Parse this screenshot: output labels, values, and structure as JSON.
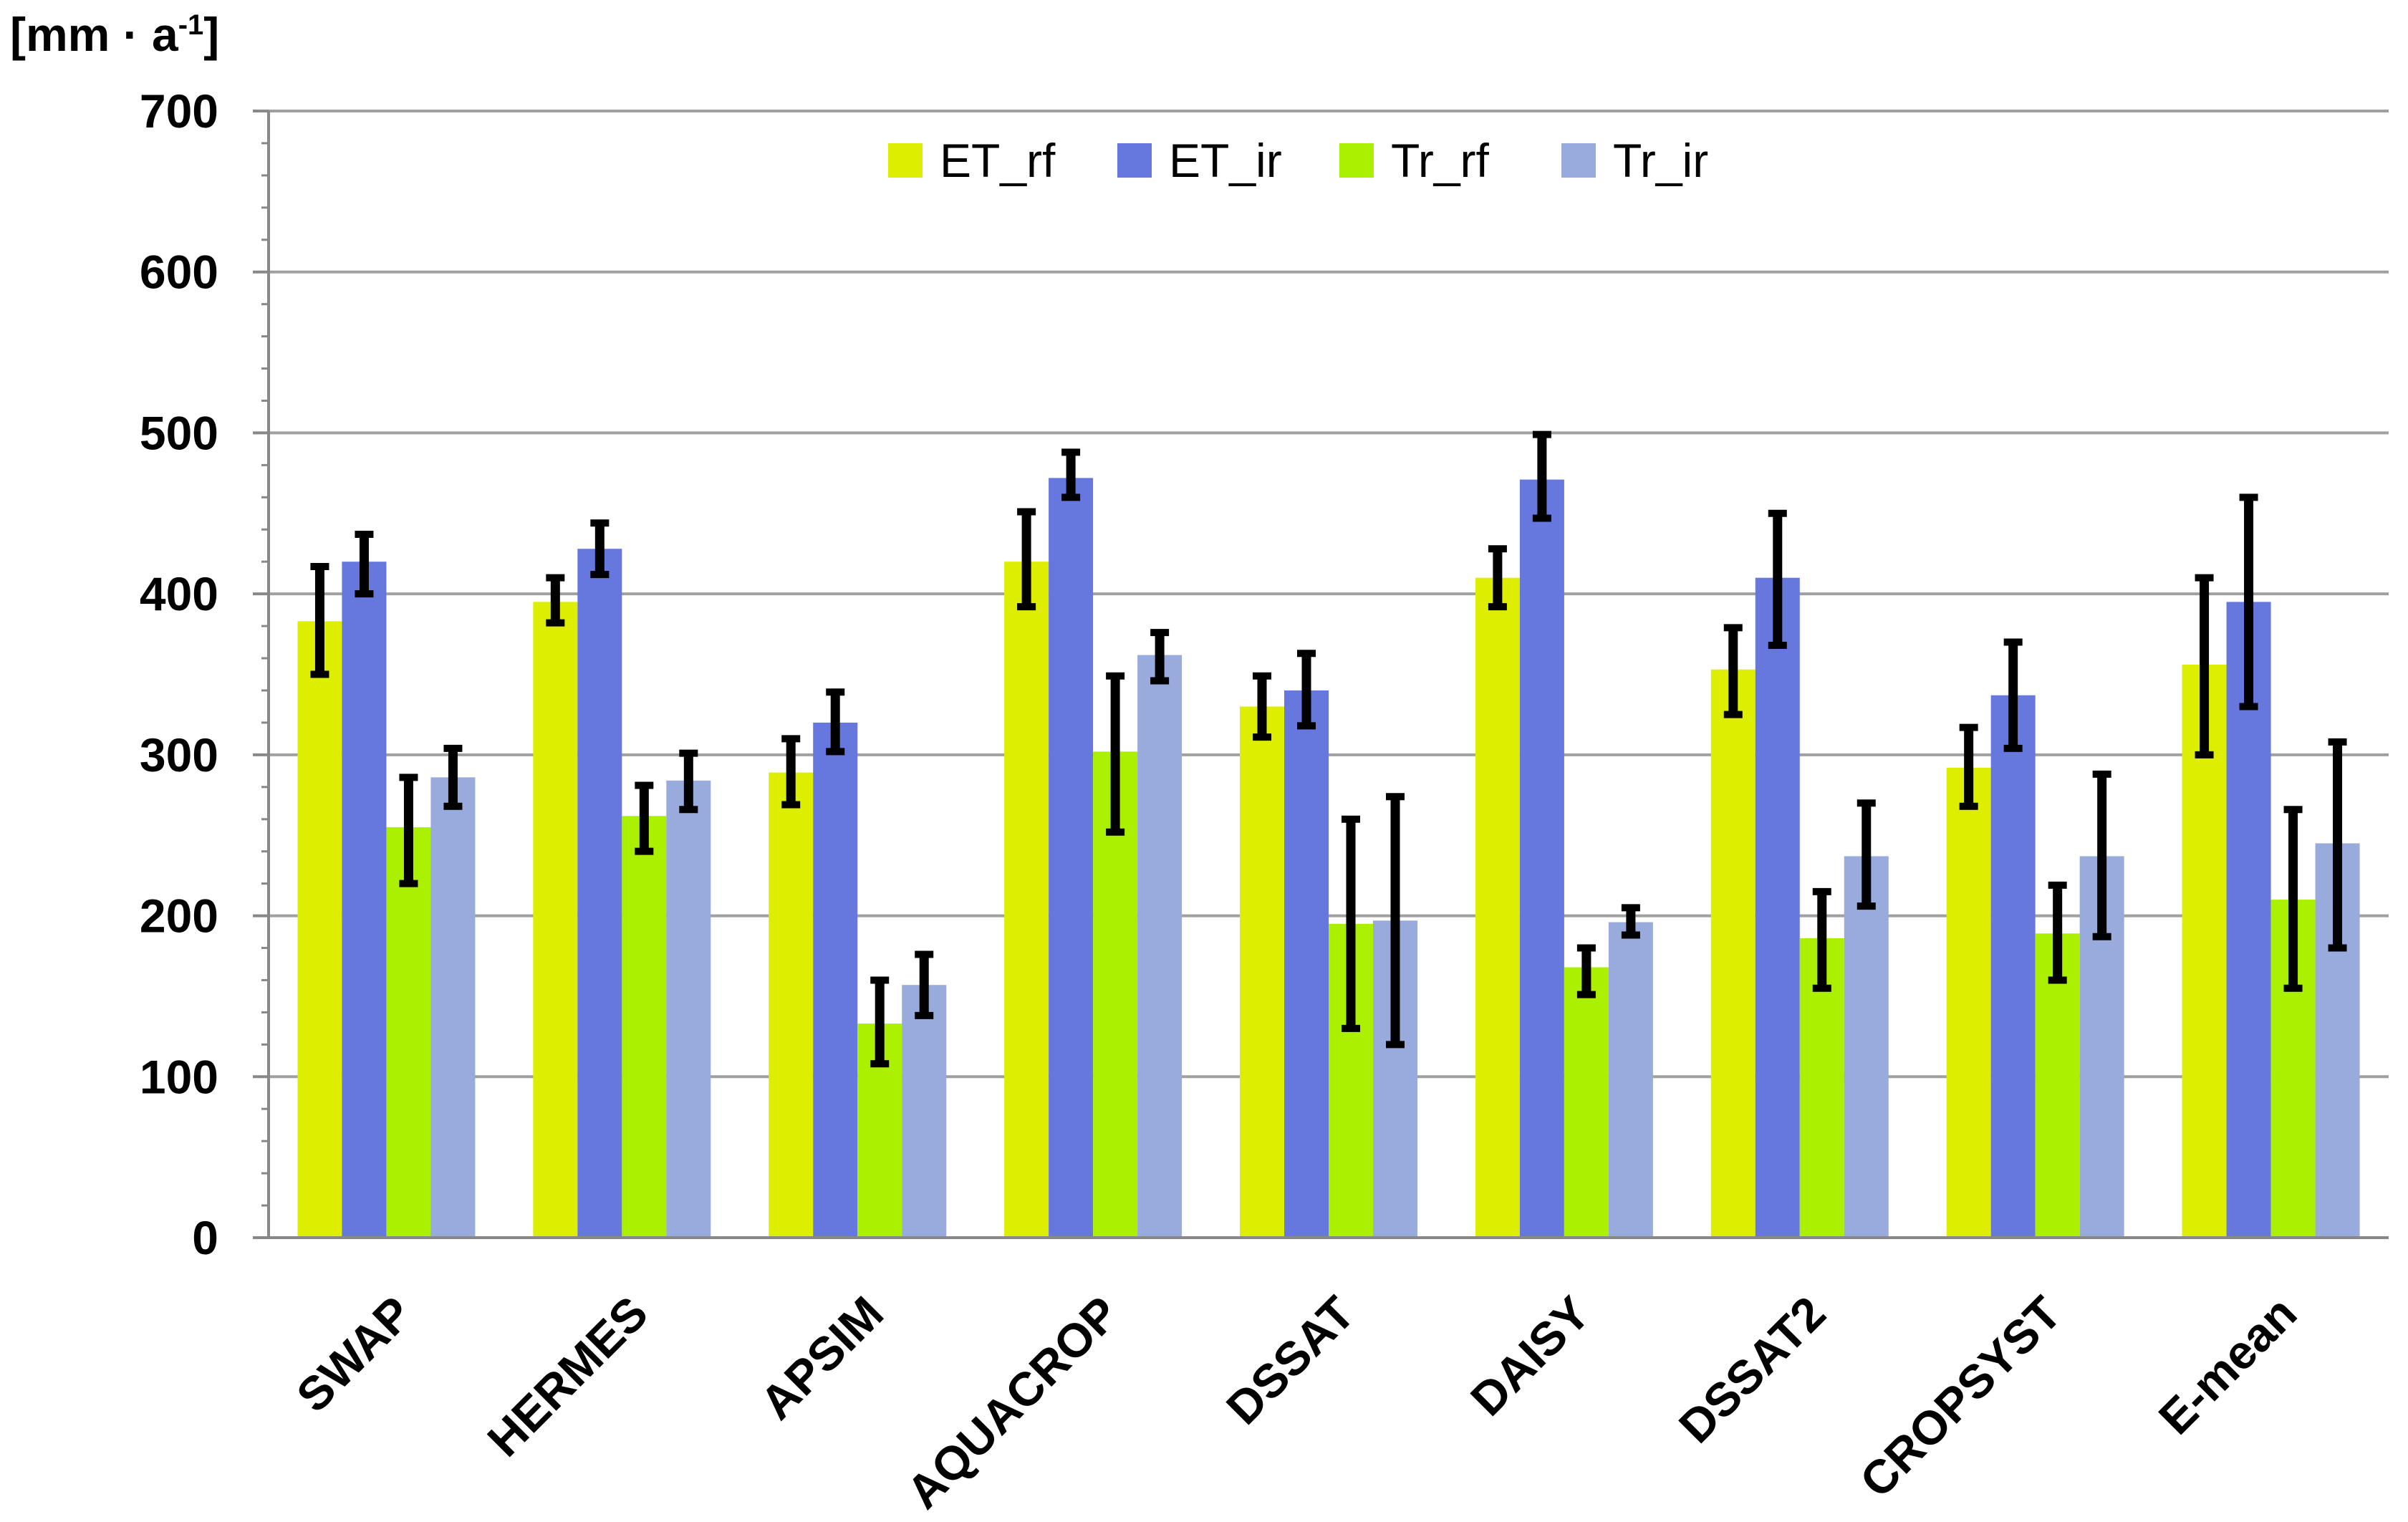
{
  "chart_data": {
    "type": "bar",
    "ylabel_prefix": "[mm · a",
    "ylabel_sup": "-1",
    "ylabel_suffix": "]",
    "ylim": [
      0,
      700
    ],
    "yticks": [
      0,
      100,
      200,
      300,
      400,
      500,
      600,
      700
    ],
    "grid": true,
    "legend_position": "top-center",
    "categories": [
      "SWAP",
      "HERMES",
      "APSIM",
      "AQUACROP",
      "DSSAT",
      "DAISY",
      "DSSAT2",
      "CROPSYST",
      "E-mean"
    ],
    "series": [
      {
        "name": "ET_rf",
        "color": "#ddee00",
        "values": [
          383,
          395,
          289,
          420,
          330,
          410,
          353,
          292,
          356
        ],
        "err_low": [
          350,
          382,
          269,
          392,
          311,
          392,
          325,
          268,
          300
        ],
        "err_high": [
          417,
          410,
          310,
          451,
          349,
          428,
          379,
          317,
          410
        ]
      },
      {
        "name": "ET_ir",
        "color": "#6677dd",
        "values": [
          420,
          428,
          320,
          472,
          340,
          471,
          410,
          337,
          395
        ],
        "err_low": [
          400,
          412,
          302,
          460,
          318,
          447,
          368,
          304,
          330
        ],
        "err_high": [
          437,
          444,
          339,
          488,
          363,
          499,
          450,
          370,
          460
        ]
      },
      {
        "name": "Tr_rf",
        "color": "#aaf000",
        "values": [
          255,
          262,
          133,
          302,
          195,
          168,
          186,
          189,
          210
        ],
        "err_low": [
          220,
          240,
          108,
          252,
          130,
          151,
          155,
          160,
          155
        ],
        "err_high": [
          286,
          281,
          160,
          349,
          260,
          180,
          215,
          219,
          266
        ]
      },
      {
        "name": "Tr_ir",
        "color": "#99aadd",
        "values": [
          286,
          284,
          157,
          362,
          197,
          196,
          237,
          237,
          245
        ],
        "err_low": [
          268,
          266,
          138,
          346,
          120,
          188,
          206,
          187,
          180
        ],
        "err_high": [
          304,
          301,
          176,
          376,
          274,
          205,
          270,
          288,
          308
        ]
      }
    ]
  },
  "colors": {
    "gridline": "#a0a0a0",
    "axis": "#888888",
    "error_bar": "#000000"
  }
}
